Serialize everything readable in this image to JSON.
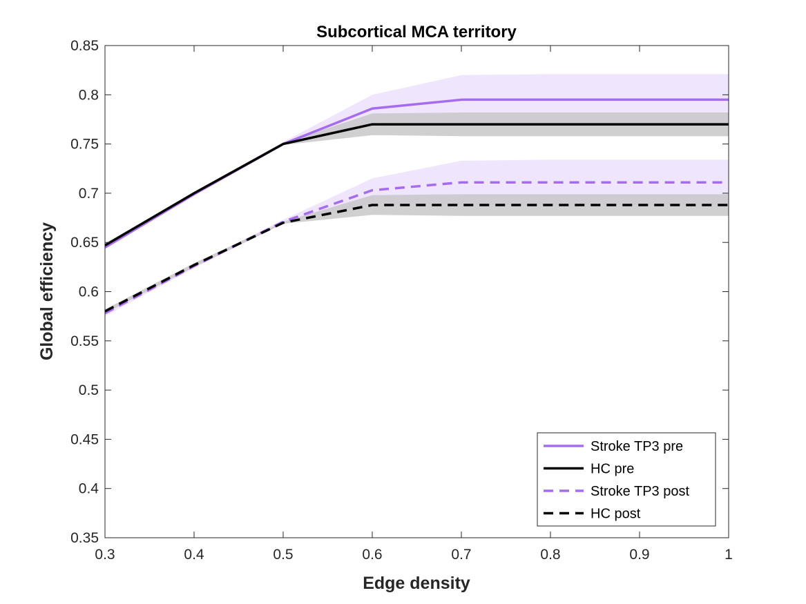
{
  "chart_data": {
    "type": "line",
    "title": "Subcortical MCA territory",
    "xlabel": "Edge density",
    "ylabel": "Global efficiency",
    "xlim": [
      0.3,
      1
    ],
    "ylim": [
      0.35,
      0.85
    ],
    "xticks": [
      "0.3",
      "0.4",
      "0.5",
      "0.6",
      "0.7",
      "0.8",
      "0.9",
      "1"
    ],
    "yticks": [
      "0.35",
      "0.4",
      "0.45",
      "0.5",
      "0.55",
      "0.6",
      "0.65",
      "0.7",
      "0.75",
      "0.8",
      "0.85"
    ],
    "grid": false,
    "legend_position": "bottom-right",
    "x": [
      0.3,
      0.4,
      0.5,
      0.6,
      0.7,
      0.8,
      0.9,
      1.0
    ],
    "series": [
      {
        "name": "Stroke TP3 pre",
        "color": "#a66cf0",
        "dash": "solid",
        "band_color": "#e9dcfb",
        "values": [
          0.645,
          0.699,
          0.75,
          0.786,
          0.795,
          0.795,
          0.795,
          0.795
        ],
        "lower": [
          0.643,
          0.698,
          0.749,
          0.772,
          0.77,
          0.77,
          0.77,
          0.77
        ],
        "upper": [
          0.647,
          0.701,
          0.752,
          0.8,
          0.82,
          0.821,
          0.821,
          0.821
        ]
      },
      {
        "name": "HC pre",
        "color": "#000000",
        "dash": "solid",
        "band_color": "#c8c8c8",
        "values": [
          0.647,
          0.7,
          0.75,
          0.77,
          0.77,
          0.77,
          0.77,
          0.77
        ],
        "lower": [
          0.645,
          0.699,
          0.749,
          0.759,
          0.758,
          0.758,
          0.758,
          0.758
        ],
        "upper": [
          0.649,
          0.701,
          0.751,
          0.781,
          0.782,
          0.782,
          0.782,
          0.782
        ]
      },
      {
        "name": "Stroke TP3 post",
        "color": "#a66cf0",
        "dash": "dashed",
        "band_color": "#e9dcfb",
        "values": [
          0.578,
          0.626,
          0.671,
          0.703,
          0.711,
          0.711,
          0.711,
          0.711
        ],
        "lower": [
          0.575,
          0.624,
          0.669,
          0.69,
          0.688,
          0.688,
          0.688,
          0.688
        ],
        "upper": [
          0.581,
          0.628,
          0.673,
          0.715,
          0.733,
          0.734,
          0.734,
          0.734
        ]
      },
      {
        "name": "HC post",
        "color": "#000000",
        "dash": "dashed",
        "band_color": "#c8c8c8",
        "values": [
          0.58,
          0.627,
          0.67,
          0.688,
          0.688,
          0.688,
          0.688,
          0.688
        ],
        "lower": [
          0.578,
          0.625,
          0.669,
          0.678,
          0.677,
          0.677,
          0.677,
          0.677
        ],
        "upper": [
          0.582,
          0.629,
          0.671,
          0.698,
          0.699,
          0.699,
          0.699,
          0.699
        ]
      }
    ]
  }
}
